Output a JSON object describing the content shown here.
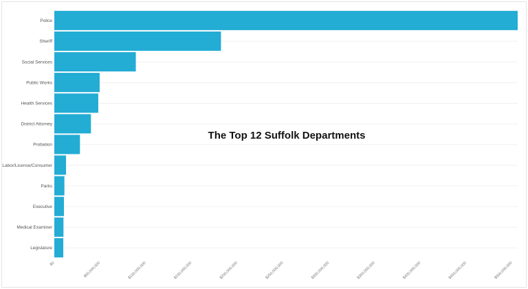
{
  "chart_data": {
    "type": "bar",
    "orientation": "horizontal",
    "title": "The Top 12 Suffolk Departments",
    "categories": [
      "Police",
      "Sheriff",
      "Social Services",
      "Public Works",
      "Health Services",
      "District Attorney",
      "Probation",
      "Labor/License/Consumer",
      "Parks",
      "Executive",
      "Medical Examiner",
      "Legislature"
    ],
    "values": [
      506000000,
      182000000,
      89000000,
      49500000,
      48000000,
      40000000,
      28000000,
      12800000,
      11000000,
      10500000,
      10000000,
      9800000
    ],
    "xlim": [
      0,
      506000000
    ],
    "xticks": [
      0,
      50000000,
      100000000,
      150000000,
      200000000,
      250000000,
      300000000,
      350000000,
      400000000,
      450000000,
      500000000
    ],
    "xtick_labels": [
      "$0",
      "$50,000,000",
      "$100,000,000",
      "$150,000,000",
      "$200,000,000",
      "$250,000,000",
      "$300,000,000",
      "$350,000,000",
      "$400,000,000",
      "$450,000,000",
      "$500,000,000"
    ],
    "xlabel": "",
    "ylabel": "",
    "grid": "horizontal",
    "legend": "none",
    "bar_color": "#23acd4"
  }
}
